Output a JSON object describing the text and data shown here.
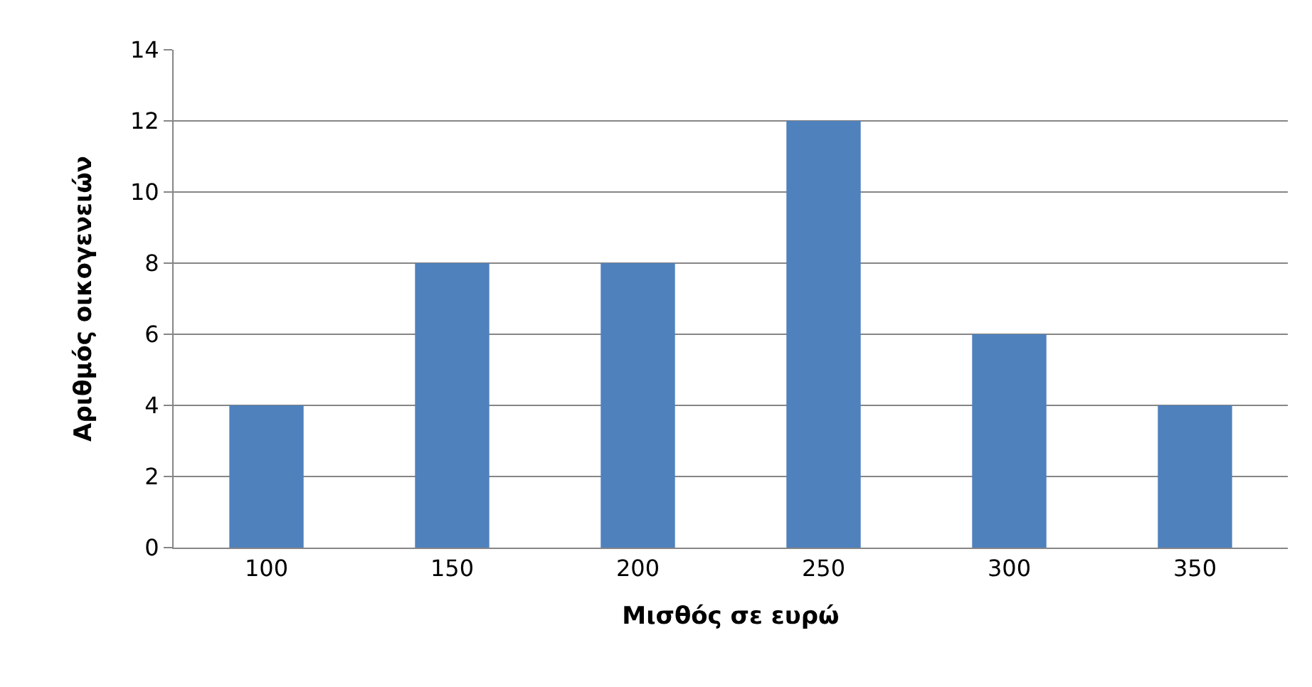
{
  "chart_data": {
    "type": "bar",
    "xlabel": "Μισθός σε ευρώ",
    "ylabel": "Αριθμός οικογενειών",
    "categories": [
      "100",
      "150",
      "200",
      "250",
      "300",
      "350"
    ],
    "values": [
      4,
      8,
      8,
      12,
      6,
      4
    ],
    "color": "#4f81bd",
    "ylim": [
      0,
      14
    ],
    "yticks": [
      0,
      2,
      4,
      6,
      8,
      10,
      12,
      14
    ],
    "grid": "y"
  }
}
